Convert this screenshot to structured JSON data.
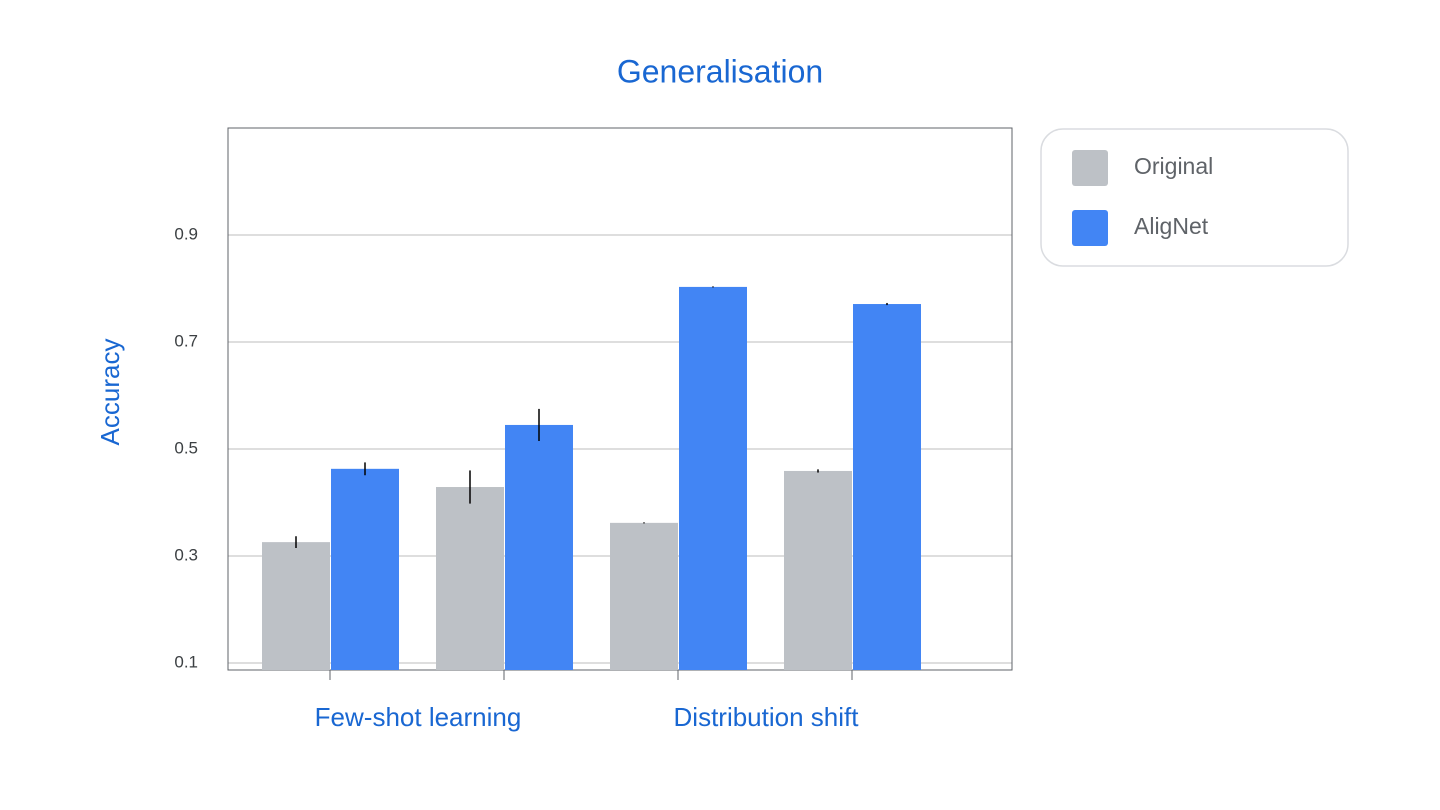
{
  "chart_data": {
    "type": "bar",
    "title": "Generalisation",
    "y_label": "Accuracy",
    "categories": [
      null,
      null,
      null,
      null
    ],
    "category_groups": [
      "Few-shot learning",
      "Distribution shift"
    ],
    "series": [
      {
        "name": "Original",
        "color": "#bdc1c6",
        "values": [
          0.326,
          0.429,
          0.362,
          0.459
        ],
        "errors": [
          0.011,
          0.031,
          0.001,
          0.003
        ]
      },
      {
        "name": "AligNet",
        "color": "#4285f4",
        "values": [
          0.463,
          0.545,
          0.803,
          0.771
        ],
        "errors": [
          0.012,
          0.03,
          0.001,
          0.002
        ]
      }
    ],
    "ylim": [
      0.087,
      1.1
    ],
    "yticks": [
      0.1,
      0.3,
      0.5,
      0.7,
      0.9
    ],
    "grid": true,
    "legend": "right"
  }
}
